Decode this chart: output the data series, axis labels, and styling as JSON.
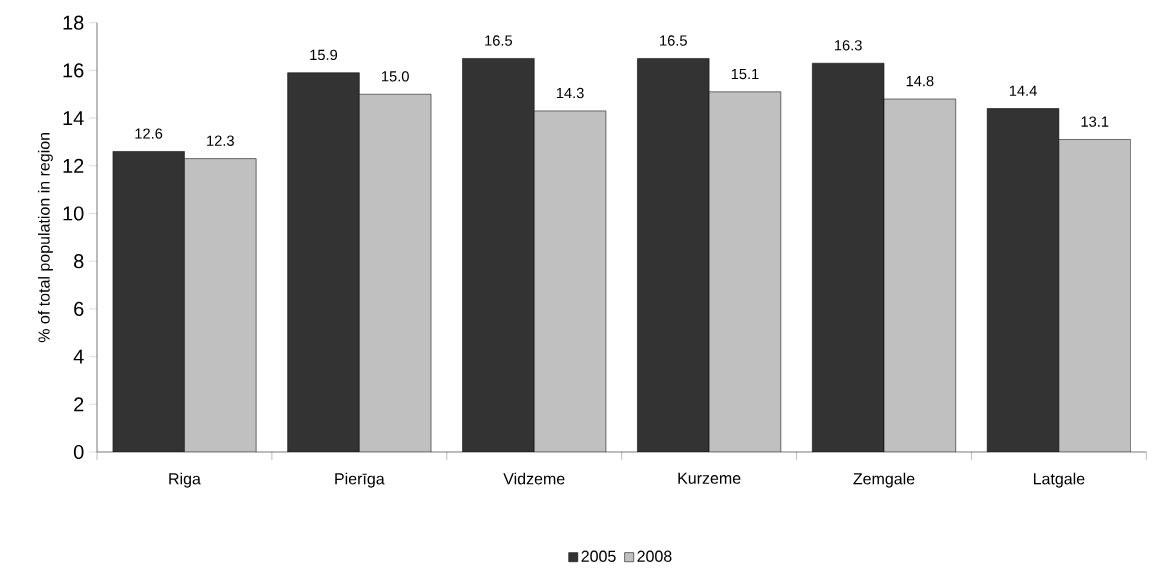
{
  "chart_data": {
    "type": "bar",
    "ylabel": "% of total population in region",
    "categories": [
      "Riga",
      "Pierīga",
      "Vidzeme",
      "Kurzeme",
      "Zemgale",
      "Latgale"
    ],
    "series": [
      {
        "name": "2005",
        "color": "#333333",
        "values": [
          12.6,
          15.9,
          16.5,
          16.5,
          16.3,
          14.4
        ],
        "value_labels": [
          "12.6",
          "15.9",
          "16.5",
          "16.5",
          "16.3",
          "14.4"
        ]
      },
      {
        "name": "2008",
        "color": "#c0c0c0",
        "values": [
          12.3,
          15.0,
          14.3,
          15.1,
          14.8,
          13.1
        ],
        "value_labels": [
          "12.3",
          "15.0",
          "14.3",
          "15.1",
          "14.8",
          "13.1"
        ]
      }
    ],
    "ylim": [
      0,
      18
    ],
    "yticks": [
      0,
      2,
      4,
      6,
      8,
      10,
      12,
      14,
      16,
      18
    ],
    "grid": false,
    "legend": "bottom"
  }
}
